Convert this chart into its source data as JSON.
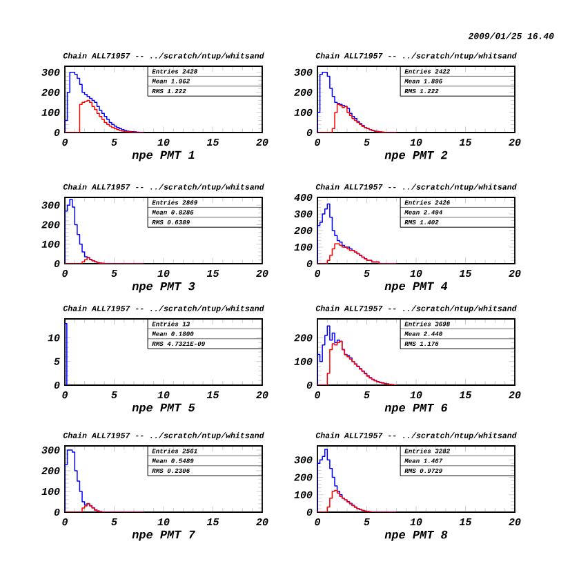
{
  "chart_data": [
    {
      "type": "other",
      "annotations": [
        "2009/01/25    16.40"
      ]
    },
    {
      "type": "histogram",
      "title": "Chain ALL71957 -- ../scratch/ntup/whitsand",
      "xlabel": "npe PMT 1",
      "xlim": [
        0,
        20
      ],
      "ylim": [
        0,
        330
      ],
      "xticks": [
        0,
        5,
        10,
        15,
        20
      ],
      "yticks": [
        0,
        100,
        200,
        300
      ],
      "annotations": [
        "Entries 2428",
        "Mean 1.962",
        "RMS 1.222"
      ],
      "bins": [
        0,
        0.25,
        0.5,
        0.75,
        1,
        1.25,
        1.5,
        1.75,
        2,
        2.25,
        2.5,
        2.75,
        3,
        3.25,
        3.5,
        3.75,
        4,
        4.25,
        4.5,
        4.75,
        5,
        5.25,
        5.5,
        5.75,
        6,
        6.25,
        6.5,
        6.75,
        7,
        7.25,
        7.5,
        7.75,
        8
      ],
      "series": [
        {
          "color": "#0000ff",
          "values": [
            60,
            200,
            300,
            300,
            290,
            270,
            240,
            200,
            190,
            180,
            170,
            160,
            150,
            130,
            110,
            95,
            80,
            65,
            50,
            40,
            32,
            25,
            20,
            15,
            10,
            7,
            5,
            4,
            3,
            2,
            1,
            0
          ]
        },
        {
          "color": "#ff0000",
          "values": [
            0,
            0,
            0,
            0,
            0,
            0,
            140,
            150,
            155,
            160,
            150,
            130,
            115,
            95,
            80,
            65,
            50,
            40,
            32,
            25,
            20,
            15,
            10,
            7,
            5,
            4,
            3,
            2,
            1,
            0,
            0,
            0
          ]
        }
      ]
    },
    {
      "type": "histogram",
      "title": "Chain ALL71957 -- ../scratch/ntup/whitsand",
      "xlabel": "npe PMT 2",
      "xlim": [
        0,
        20
      ],
      "ylim": [
        0,
        330
      ],
      "xticks": [
        0,
        5,
        10,
        15,
        20
      ],
      "yticks": [
        0,
        100,
        200,
        300
      ],
      "annotations": [
        "Entries 2422",
        "Mean 1.896",
        "RMS 1.222"
      ],
      "bins": [
        0,
        0.25,
        0.5,
        0.75,
        1,
        1.25,
        1.5,
        1.75,
        2,
        2.25,
        2.5,
        2.75,
        3,
        3.25,
        3.5,
        3.75,
        4,
        4.25,
        4.5,
        4.75,
        5,
        5.25,
        5.5,
        5.75,
        6,
        6.25,
        6.5,
        6.75,
        7,
        7.25,
        7.5,
        7.75,
        8
      ],
      "series": [
        {
          "color": "#0000ff",
          "values": [
            100,
            290,
            300,
            300,
            280,
            220,
            180,
            150,
            145,
            140,
            135,
            130,
            120,
            95,
            80,
            70,
            55,
            45,
            35,
            25,
            20,
            15,
            10,
            7,
            5,
            3,
            2,
            1,
            0,
            0,
            0,
            0
          ]
        },
        {
          "color": "#ff0000",
          "values": [
            0,
            0,
            0,
            0,
            0,
            0,
            20,
            100,
            140,
            135,
            125,
            130,
            100,
            85,
            70,
            60,
            50,
            40,
            30,
            25,
            20,
            15,
            10,
            7,
            5,
            3,
            2,
            1,
            0,
            0,
            0,
            0
          ]
        }
      ]
    },
    {
      "type": "histogram",
      "title": "Chain ALL71957 -- ../scratch/ntup/whitsand",
      "xlabel": "npe PMT 3",
      "xlim": [
        0,
        20
      ],
      "ylim": [
        0,
        340
      ],
      "xticks": [
        0,
        5,
        10,
        15,
        20
      ],
      "yticks": [
        0,
        100,
        200,
        300
      ],
      "annotations": [
        "Entries 2869",
        "Mean 0.8286",
        "RMS 0.6389"
      ],
      "bins": [
        0,
        0.25,
        0.5,
        0.75,
        1,
        1.25,
        1.5,
        1.75,
        2,
        2.25,
        2.5,
        2.75,
        3,
        3.25,
        3.5,
        3.75,
        4,
        4.25,
        4.5,
        4.75,
        5,
        5.25,
        5.5,
        5.75,
        6,
        6.25,
        6.5,
        6.75,
        7,
        7.25,
        7.5,
        7.75,
        8
      ],
      "series": [
        {
          "color": "#0000ff",
          "values": [
            270,
            300,
            330,
            290,
            200,
            150,
            100,
            60,
            35,
            32,
            22,
            15,
            10,
            5,
            3,
            2,
            1,
            0,
            0,
            0,
            0,
            0,
            0,
            0,
            0,
            0,
            0,
            0,
            0,
            0,
            0,
            0
          ]
        },
        {
          "color": "#ff0000",
          "values": [
            0,
            0,
            0,
            0,
            0,
            0,
            0,
            10,
            20,
            30,
            20,
            15,
            10,
            5,
            3,
            2,
            1,
            0,
            0,
            0,
            0,
            0,
            0,
            0,
            0,
            0,
            0,
            0,
            0,
            0,
            0,
            0
          ]
        }
      ]
    },
    {
      "type": "histogram",
      "title": "Chain ALL71957 -- ../scratch/ntup/whitsand",
      "xlabel": "npe PMT 4",
      "xlim": [
        0,
        20
      ],
      "ylim": [
        0,
        400
      ],
      "xticks": [
        0,
        5,
        10,
        15,
        20
      ],
      "yticks": [
        0,
        100,
        200,
        300,
        400
      ],
      "annotations": [
        "Entries 2426",
        "Mean 2.494",
        "RMS 1.402"
      ],
      "bins": [
        0,
        0.25,
        0.5,
        0.75,
        1,
        1.25,
        1.5,
        1.75,
        2,
        2.25,
        2.5,
        2.75,
        3,
        3.25,
        3.5,
        3.75,
        4,
        4.25,
        4.5,
        4.75,
        5,
        5.25,
        5.5,
        5.75,
        6,
        6.25,
        6.5,
        6.75,
        7,
        7.25,
        7.5,
        7.75,
        8
      ],
      "series": [
        {
          "color": "#0000ff",
          "values": [
            230,
            250,
            300,
            330,
            360,
            280,
            200,
            170,
            140,
            130,
            110,
            100,
            100,
            90,
            80,
            70,
            60,
            50,
            40,
            30,
            20,
            20,
            10,
            10,
            10,
            0,
            0,
            0,
            0,
            0,
            0,
            0
          ]
        },
        {
          "color": "#ff0000",
          "values": [
            0,
            0,
            0,
            0,
            20,
            50,
            90,
            120,
            120,
            110,
            100,
            100,
            90,
            80,
            80,
            70,
            60,
            50,
            40,
            30,
            20,
            20,
            10,
            10,
            10,
            0,
            0,
            0,
            0,
            0,
            0,
            0
          ]
        }
      ]
    },
    {
      "type": "histogram",
      "title": "Chain ALL71957 -- ../scratch/ntup/whitsand",
      "xlabel": "npe PMT 5",
      "xlim": [
        0,
        20
      ],
      "ylim": [
        0,
        14
      ],
      "xticks": [
        0,
        5,
        10,
        15,
        20
      ],
      "yticks": [
        0,
        5,
        10
      ],
      "annotations": [
        "Entries 13",
        "Mean 0.1800",
        "RMS 4.7321E-09"
      ],
      "bins": [
        0,
        0.2,
        0.4
      ],
      "series": [
        {
          "color": "#0000ff",
          "values": [
            13,
            0
          ]
        }
      ]
    },
    {
      "type": "histogram",
      "title": "Chain ALL71957 -- ../scratch/ntup/whitsand",
      "xlabel": "npe PMT 6",
      "xlim": [
        0,
        20
      ],
      "ylim": [
        0,
        280
      ],
      "xticks": [
        0,
        5,
        10,
        15,
        20
      ],
      "yticks": [
        0,
        100,
        200
      ],
      "annotations": [
        "Entries 3698",
        "Mean 2.440",
        "RMS 1.176"
      ],
      "bins": [
        0,
        0.25,
        0.5,
        0.75,
        1,
        1.25,
        1.5,
        1.75,
        2,
        2.25,
        2.5,
        2.75,
        3,
        3.25,
        3.5,
        3.75,
        4,
        4.25,
        4.5,
        4.75,
        5,
        5.25,
        5.5,
        5.75,
        6,
        6.25,
        6.5,
        6.75,
        7,
        7.25,
        7.5,
        7.75,
        8
      ],
      "series": [
        {
          "color": "#0000ff",
          "values": [
            130,
            100,
            170,
            210,
            250,
            190,
            220,
            180,
            190,
            185,
            150,
            130,
            125,
            115,
            100,
            90,
            80,
            70,
            60,
            50,
            40,
            32,
            25,
            20,
            15,
            12,
            10,
            7,
            5,
            3,
            2,
            1
          ]
        },
        {
          "color": "#ff0000",
          "values": [
            0,
            0,
            0,
            0,
            50,
            150,
            175,
            170,
            180,
            185,
            150,
            128,
            120,
            110,
            100,
            88,
            78,
            68,
            58,
            48,
            38,
            30,
            24,
            18,
            14,
            11,
            9,
            6,
            4,
            3,
            2,
            1
          ]
        }
      ]
    },
    {
      "type": "histogram",
      "title": "Chain ALL71957 -- ../scratch/ntup/whitsand",
      "xlabel": "npe PMT 7",
      "xlim": [
        0,
        20
      ],
      "ylim": [
        0,
        320
      ],
      "xticks": [
        0,
        5,
        10,
        15,
        20
      ],
      "yticks": [
        0,
        100,
        200,
        300
      ],
      "annotations": [
        "Entries 2561",
        "Mean 0.5489",
        "RMS 0.2306"
      ],
      "bins": [
        0,
        0.25,
        0.5,
        0.75,
        1,
        1.25,
        1.5,
        1.75,
        2,
        2.25,
        2.5,
        2.75,
        3,
        3.25,
        3.5,
        3.75,
        4,
        4.25,
        4.5,
        4.75,
        5,
        5.25,
        5.5,
        5.75,
        6,
        6.25,
        6.5,
        6.75,
        7,
        7.25,
        7.5,
        7.75,
        8
      ],
      "series": [
        {
          "color": "#0000ff",
          "values": [
            230,
            300,
            300,
            290,
            200,
            150,
            100,
            50,
            35,
            42,
            32,
            22,
            12,
            6,
            3,
            1,
            0,
            0,
            0,
            0,
            0,
            0,
            0,
            0,
            0,
            0,
            0,
            0,
            0,
            0,
            0,
            0
          ]
        },
        {
          "color": "#ff0000",
          "values": [
            0,
            0,
            0,
            0,
            0,
            0,
            0,
            20,
            30,
            40,
            30,
            20,
            10,
            5,
            2,
            0,
            0,
            0,
            0,
            0,
            0,
            0,
            0,
            0,
            0,
            0,
            0,
            0,
            0,
            0,
            0,
            0
          ]
        }
      ]
    },
    {
      "type": "histogram",
      "title": "Chain ALL71957 -- ../scratch/ntup/whitsand",
      "xlabel": "npe PMT 8",
      "xlim": [
        0,
        20
      ],
      "ylim": [
        0,
        380
      ],
      "xticks": [
        0,
        5,
        10,
        15,
        20
      ],
      "yticks": [
        0,
        100,
        200,
        300
      ],
      "annotations": [
        "Entries 3282",
        "Mean 1.467",
        "RMS 0.9729"
      ],
      "bins": [
        0,
        0.25,
        0.5,
        0.75,
        1,
        1.25,
        1.5,
        1.75,
        2,
        2.25,
        2.5,
        2.75,
        3,
        3.25,
        3.5,
        3.75,
        4,
        4.25,
        4.5,
        4.75,
        5,
        5.25,
        5.5,
        5.75,
        6,
        6.25,
        6.5,
        6.75,
        7,
        7.25,
        7.5,
        7.75,
        8
      ],
      "series": [
        {
          "color": "#0000ff",
          "values": [
            280,
            300,
            320,
            360,
            300,
            250,
            200,
            150,
            120,
            100,
            80,
            70,
            60,
            50,
            40,
            30,
            20,
            15,
            10,
            6,
            4,
            2,
            1,
            0,
            0,
            0,
            0,
            0,
            0,
            0,
            0,
            0
          ]
        },
        {
          "color": "#ff0000",
          "values": [
            0,
            0,
            0,
            0,
            30,
            80,
            120,
            125,
            110,
            90,
            80,
            70,
            58,
            48,
            38,
            28,
            20,
            15,
            10,
            6,
            4,
            2,
            1,
            0,
            0,
            0,
            0,
            0,
            0,
            0,
            0,
            0
          ]
        }
      ]
    }
  ]
}
